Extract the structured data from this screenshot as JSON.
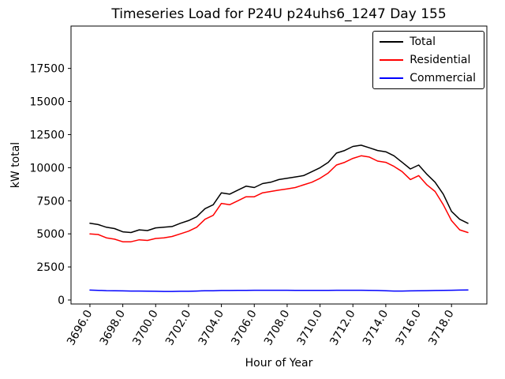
{
  "title": "Timeseries Load for P24U p24uhs6_1247  Day 155",
  "xlabel": "Hour of Year",
  "ylabel": "kW total",
  "chart_data": {
    "type": "line",
    "x": [
      3696.0,
      3696.5,
      3697.0,
      3697.5,
      3698.0,
      3698.5,
      3699.0,
      3699.5,
      3700.0,
      3700.5,
      3701.0,
      3701.5,
      3702.0,
      3702.5,
      3703.0,
      3703.5,
      3704.0,
      3704.5,
      3705.0,
      3705.5,
      3706.0,
      3706.5,
      3707.0,
      3707.5,
      3708.0,
      3708.5,
      3709.0,
      3709.5,
      3710.0,
      3710.5,
      3711.0,
      3711.5,
      3712.0,
      3712.5,
      3713.0,
      3713.5,
      3714.0,
      3714.5,
      3715.0,
      3715.5,
      3716.0,
      3716.5,
      3717.0,
      3717.5,
      3718.0,
      3718.5,
      3719.0
    ],
    "series": [
      {
        "name": "Total",
        "color": "#000000",
        "values": [
          5800,
          5700,
          5500,
          5400,
          5150,
          5100,
          5300,
          5250,
          5450,
          5500,
          5550,
          5800,
          6000,
          6300,
          6900,
          7200,
          8100,
          8000,
          8300,
          8600,
          8500,
          8800,
          8900,
          9100,
          9200,
          9300,
          9400,
          9700,
          10000,
          10400,
          11100,
          11300,
          11600,
          11700,
          11500,
          11300,
          11200,
          10900,
          10400,
          9900,
          10200,
          9500,
          8900,
          8000,
          6700,
          6100,
          5800
        ]
      },
      {
        "name": "Residential",
        "color": "#ff0000",
        "values": [
          5000,
          4950,
          4700,
          4600,
          4400,
          4400,
          4550,
          4500,
          4650,
          4700,
          4800,
          5000,
          5200,
          5500,
          6100,
          6400,
          7300,
          7200,
          7500,
          7800,
          7800,
          8100,
          8200,
          8300,
          8400,
          8500,
          8700,
          8900,
          9200,
          9600,
          10200,
          10400,
          10700,
          10900,
          10800,
          10500,
          10400,
          10100,
          9700,
          9100,
          9400,
          8700,
          8200,
          7200,
          6000,
          5300,
          5100
        ]
      },
      {
        "name": "Commercial",
        "color": "#0000ff",
        "values": [
          750,
          730,
          710,
          700,
          690,
          680,
          680,
          670,
          660,
          650,
          650,
          660,
          660,
          680,
          700,
          700,
          720,
          720,
          730,
          730,
          740,
          740,
          740,
          740,
          740,
          730,
          730,
          730,
          730,
          730,
          740,
          740,
          740,
          740,
          730,
          720,
          700,
          680,
          680,
          690,
          700,
          710,
          720,
          730,
          740,
          750,
          760
        ]
      }
    ],
    "xticks": [
      3696,
      3698,
      3700,
      3702,
      3704,
      3706,
      3708,
      3710,
      3712,
      3714,
      3716,
      3718
    ],
    "xtick_labels": [
      "3696.0",
      "3698.0",
      "3700.0",
      "3702.0",
      "3704.0",
      "3706.0",
      "3708.0",
      "3710.0",
      "3712.0",
      "3714.0",
      "3716.0",
      "3718.0"
    ],
    "yticks": [
      0,
      2500,
      5000,
      7500,
      10000,
      12500,
      15000,
      17500
    ],
    "ytick_labels": [
      "0",
      "2500",
      "5000",
      "7500",
      "10000",
      "12500",
      "15000",
      "17500"
    ],
    "xlim": [
      3694.85,
      3720.15
    ],
    "ylim": [
      -300,
      20700
    ],
    "legend_position": "upper right",
    "grid": false
  }
}
